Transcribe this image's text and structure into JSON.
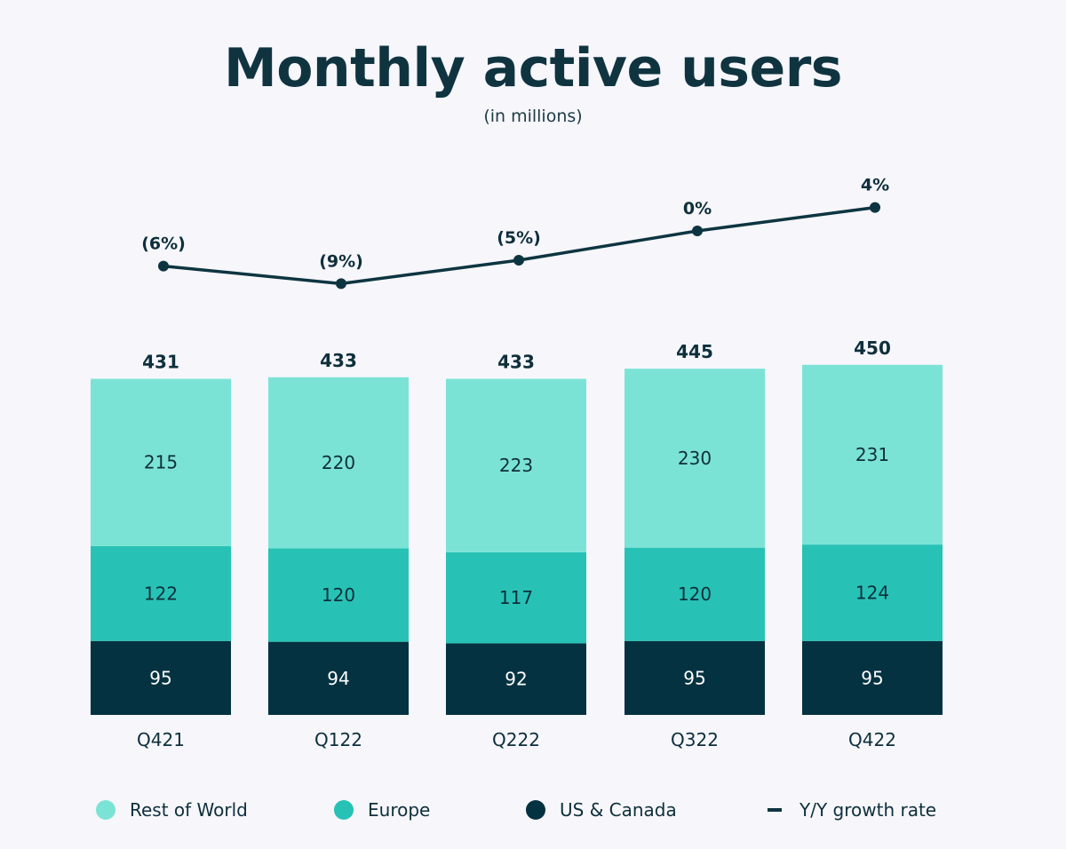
{
  "title": "Monthly active users",
  "subtitle": "(in millions)",
  "colors": {
    "rest_of_world": "#7be3d6",
    "europe": "#27c2b5",
    "us_canada": "#053240",
    "line": "#0d3541",
    "text_dark": "#0e2f3b"
  },
  "chart_data": {
    "type": "bar",
    "stacked": true,
    "categories": [
      "Q421",
      "Q122",
      "Q222",
      "Q322",
      "Q422"
    ],
    "series": [
      {
        "name": "US & Canada",
        "values": [
          95,
          94,
          92,
          95,
          95
        ]
      },
      {
        "name": "Europe",
        "values": [
          122,
          120,
          117,
          120,
          124
        ]
      },
      {
        "name": "Rest of World",
        "values": [
          215,
          220,
          223,
          230,
          231
        ]
      }
    ],
    "totals": [
      431,
      433,
      433,
      445,
      450
    ],
    "line_series": {
      "name": "Y/Y growth rate",
      "values": [
        -6,
        -9,
        -5,
        0,
        4
      ],
      "labels": [
        "(6%)",
        "(9%)",
        "(5%)",
        "0%",
        "4%"
      ]
    },
    "legend": [
      "Rest of World",
      "Europe",
      "US & Canada",
      "Y/Y growth rate"
    ],
    "legend_position": "bottom"
  }
}
